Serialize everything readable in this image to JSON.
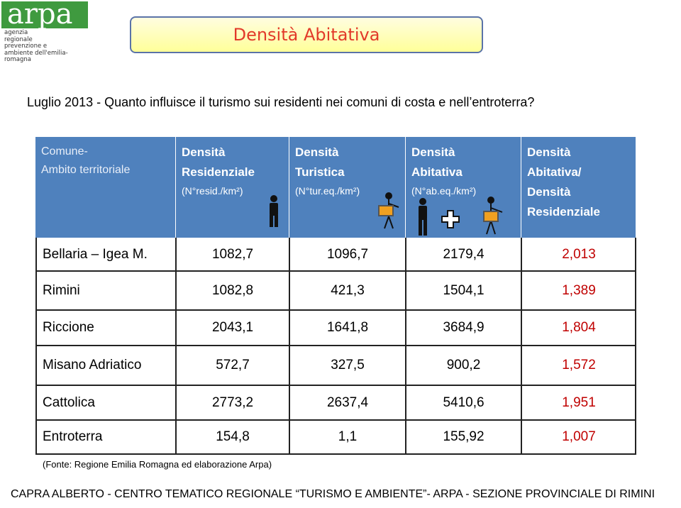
{
  "logo": {
    "name": "arpa",
    "lines": [
      "agenzia",
      "regionale",
      "prevenzione e",
      "ambiente dell'emilia-romagna"
    ]
  },
  "title": "Densità Abitativa",
  "subtitle": "Luglio 2013 - Quanto influisce il turismo sui residenti nei comuni di costa e nell’entroterra?",
  "table": {
    "header": [
      {
        "lines": [
          "Comune-",
          "Ambito territoriale"
        ]
      },
      {
        "lines": [
          "Densità",
          "Residenziale"
        ],
        "unit": "(N°resid./km²)"
      },
      {
        "lines": [
          "Densità",
          "Turistica"
        ],
        "unit": "(N°tur.eq./km²)"
      },
      {
        "lines": [
          "Densità",
          "Abitativa"
        ],
        "unit": "(N°ab.eq./km²)"
      },
      {
        "lines": [
          "Densità",
          "Abitativa/",
          "Densità",
          "Residenziale"
        ]
      }
    ],
    "rows": [
      [
        "Bellaria – Igea M.",
        "1082,7",
        "1096,7",
        "2179,4",
        "2,013"
      ],
      [
        "Rimini",
        "1082,8",
        "421,3",
        "1504,1",
        "1,389"
      ],
      [
        "Riccione",
        "2043,1",
        "1641,8",
        "3684,9",
        "1,804"
      ],
      [
        "Misano Adriatico",
        "572,7",
        "327,5",
        "900,2",
        "1,572"
      ],
      [
        "Cattolica",
        "2773,2",
        "2637,4",
        "5410,6",
        "1,951"
      ],
      [
        "Entroterra",
        "154,8",
        "1,1",
        "155,92",
        "1,007"
      ]
    ]
  },
  "source": "(Fonte: Regione Emilia Romagna ed elaborazione Arpa)",
  "footer": "CAPRA ALBERTO - CENTRO TEMATICO REGIONALE “TURISMO E AMBIENTE”- ARPA - SEZIONE PROVINCIALE DI RIMINI"
}
